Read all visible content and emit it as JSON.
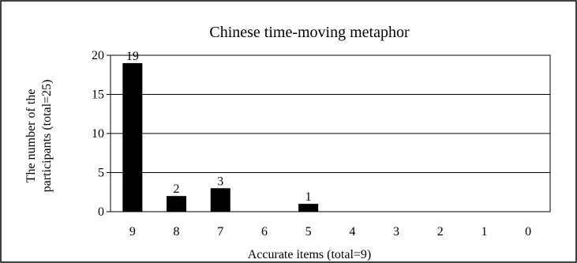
{
  "chart_data": {
    "type": "bar",
    "title": "Chinese time-moving metaphor",
    "xlabel": "Accurate items (total=9)",
    "ylabel_lines": [
      "The number of the",
      "participants (total=25)"
    ],
    "categories": [
      "9",
      "8",
      "7",
      "6",
      "5",
      "4",
      "3",
      "2",
      "1",
      "0"
    ],
    "values": [
      19,
      2,
      3,
      0,
      1,
      0,
      0,
      0,
      0,
      0
    ],
    "data_labels": [
      "19",
      "2",
      "3",
      "",
      "1",
      "",
      "",
      "",
      "",
      ""
    ],
    "ylim": [
      0,
      20
    ],
    "yticks": [
      0,
      5,
      10,
      15,
      20
    ],
    "grid": true,
    "bar_color": "#000000"
  }
}
